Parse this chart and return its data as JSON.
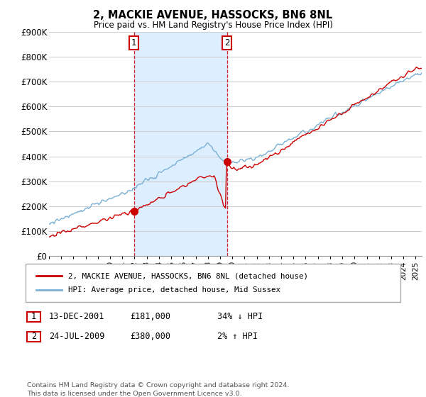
{
  "title": "2, MACKIE AVENUE, HASSOCKS, BN6 8NL",
  "subtitle": "Price paid vs. HM Land Registry's House Price Index (HPI)",
  "legend_line1": "2, MACKIE AVENUE, HASSOCKS, BN6 8NL (detached house)",
  "legend_line2": "HPI: Average price, detached house, Mid Sussex",
  "transaction1_label": "1",
  "transaction1_date": "13-DEC-2001",
  "transaction1_price": "£181,000",
  "transaction1_hpi": "34% ↓ HPI",
  "transaction2_label": "2",
  "transaction2_date": "24-JUL-2009",
  "transaction2_price": "£380,000",
  "transaction2_hpi": "2% ↑ HPI",
  "footer": "Contains HM Land Registry data © Crown copyright and database right 2024.\nThis data is licensed under the Open Government Licence v3.0.",
  "red_color": "#cc0000",
  "blue_color": "#7ab0d4",
  "shading_color": "#ddeeff",
  "marker_color": "#cc0000",
  "transaction_box_color": "#cc0000",
  "ylim": [
    0,
    900000
  ],
  "yticks": [
    0,
    100000,
    200000,
    300000,
    400000,
    500000,
    600000,
    700000,
    800000,
    900000
  ],
  "transaction1_x": 2001.95,
  "transaction2_x": 2009.56,
  "xmin": 1995.0,
  "xmax": 2025.5
}
